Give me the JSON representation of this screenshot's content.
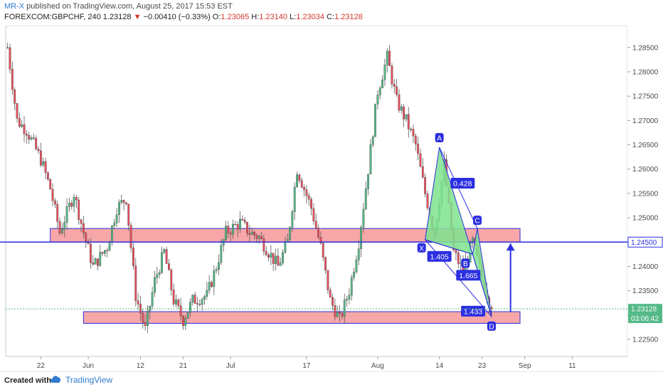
{
  "header": {
    "author": "MR-X",
    "published": "published on TradingView.com, August 25, 2017 15:53 EST",
    "symbol": "FOREXCOM:GBPCHF, 240",
    "last": "1.23128",
    "change": "−0.00410 (−0.33%)",
    "o_label": "O:",
    "o_value": "1.23065",
    "h_label": "H:",
    "h_value": "1.23140",
    "l_label": "L:",
    "l_value": "1.23034",
    "c_label": "C:",
    "c_value": "1.23128"
  },
  "chart_data": {
    "type": "candlestick",
    "symbol": "FOREXCOM:GBPCHF",
    "interval": "240",
    "ylim": [
      1.2215,
      1.2895
    ],
    "y_ticks": [
      "1.28500",
      "1.28000",
      "1.27500",
      "1.27000",
      "1.26500",
      "1.26000",
      "1.25500",
      "1.25000",
      "1.24500",
      "1.24000",
      "1.23500",
      "1.23000",
      "1.22500"
    ],
    "x_ticks": [
      "22",
      "Jun",
      "12",
      "21",
      "Jul",
      "17",
      "Aug",
      "14",
      "23",
      "Sep",
      "11"
    ],
    "close_path": [
      {
        "date": "May 15",
        "close": 1.285
      },
      {
        "date": "May 17",
        "close": 1.27
      },
      {
        "date": "May 19",
        "close": 1.268
      },
      {
        "date": "May 22",
        "close": 1.262
      },
      {
        "date": "May 24",
        "close": 1.256
      },
      {
        "date": "May 26",
        "close": 1.247
      },
      {
        "date": "May 29",
        "close": 1.255
      },
      {
        "date": "May 31",
        "close": 1.247
      },
      {
        "date": "Jun 2",
        "close": 1.24
      },
      {
        "date": "Jun 5",
        "close": 1.244
      },
      {
        "date": "Jun 7",
        "close": 1.252
      },
      {
        "date": "Jun 9",
        "close": 1.254
      },
      {
        "date": "Jun 11",
        "close": 1.234
      },
      {
        "date": "Jun 13",
        "close": 1.227
      },
      {
        "date": "Jun 15",
        "close": 1.237
      },
      {
        "date": "Jun 17",
        "close": 1.243
      },
      {
        "date": "Jun 19",
        "close": 1.233
      },
      {
        "date": "Jun 21",
        "close": 1.229
      },
      {
        "date": "Jun 23",
        "close": 1.233
      },
      {
        "date": "Jun 26",
        "close": 1.234
      },
      {
        "date": "Jun 28",
        "close": 1.24
      },
      {
        "date": "Jun 30",
        "close": 1.247
      },
      {
        "date": "Jul 3",
        "close": 1.249
      },
      {
        "date": "Jul 5",
        "close": 1.247
      },
      {
        "date": "Jul 7",
        "close": 1.246
      },
      {
        "date": "Jul 9",
        "close": 1.243
      },
      {
        "date": "Jul 11",
        "close": 1.24
      },
      {
        "date": "Jul 13",
        "close": 1.245
      },
      {
        "date": "Jul 15",
        "close": 1.26
      },
      {
        "date": "Jul 18",
        "close": 1.252
      },
      {
        "date": "Jul 20",
        "close": 1.244
      },
      {
        "date": "Jul 22",
        "close": 1.233
      },
      {
        "date": "Jul 24",
        "close": 1.229
      },
      {
        "date": "Jul 26",
        "close": 1.235
      },
      {
        "date": "Jul 28",
        "close": 1.245
      },
      {
        "date": "Jul 30",
        "close": 1.26
      },
      {
        "date": "Aug 1",
        "close": 1.276
      },
      {
        "date": "Aug 3",
        "close": 1.283
      },
      {
        "date": "Aug 5",
        "close": 1.274
      },
      {
        "date": "Aug 7",
        "close": 1.27
      },
      {
        "date": "Aug 9",
        "close": 1.265
      },
      {
        "date": "Aug 11",
        "close": 1.255
      },
      {
        "date": "Aug 13",
        "close": 1.247
      },
      {
        "date": "Aug 15",
        "close": 1.261
      },
      {
        "date": "Aug 17",
        "close": 1.243
      },
      {
        "date": "Aug 19",
        "close": 1.239
      },
      {
        "date": "Aug 21",
        "close": 1.245
      },
      {
        "date": "Aug 23",
        "close": 1.238
      },
      {
        "date": "Aug 25",
        "close": 1.2313
      }
    ],
    "zones": [
      {
        "from": "May 24",
        "to": "Aug 31",
        "low": 1.245,
        "high": 1.2478,
        "color": "#f7a7a7"
      },
      {
        "from": "May 31",
        "to": "Aug 31",
        "low": 1.2283,
        "high": 1.2307,
        "color": "#f7a7a7"
      }
    ],
    "hlines": [
      {
        "value": 1.245,
        "label": "1.24500",
        "color": "#2b2fe0"
      }
    ],
    "harmonic_pattern": {
      "points": [
        {
          "label": "X",
          "date": "Aug 11",
          "price": 1.2455
        },
        {
          "label": "A",
          "date": "Aug 14",
          "price": 1.2645
        },
        {
          "label": "B",
          "date": "Aug 21",
          "price": 1.2425
        },
        {
          "label": "C",
          "date": "Aug 22",
          "price": 1.2478
        },
        {
          "label": "D",
          "date": "Aug 25",
          "price": 1.2297
        }
      ],
      "ratios": [
        "0.428",
        "1.405",
        "1.665",
        "1.433"
      ]
    },
    "current_price": {
      "value": "1.23128",
      "countdown": "03:06:42"
    },
    "colors": {
      "up": "#53b987",
      "down": "#eb4d5c",
      "zone": "#f7a7a7",
      "pattern": "#2b2fe0",
      "pattern_fill": "#7fe38f"
    }
  },
  "footer": {
    "created_with": "Created with",
    "brand": "TradingView"
  }
}
